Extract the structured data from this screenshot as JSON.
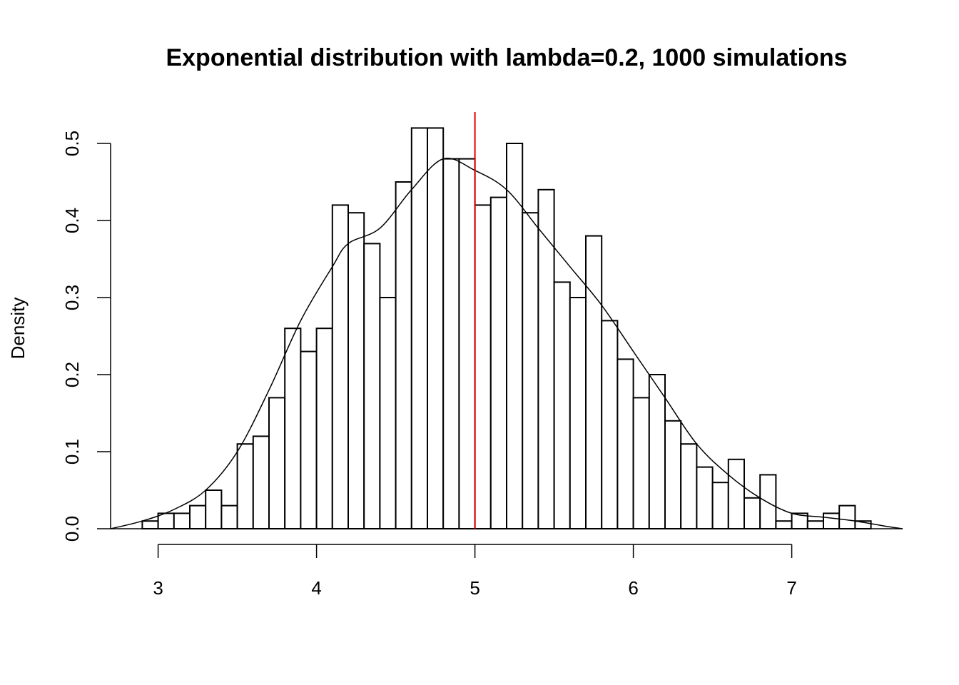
{
  "chart_data": {
    "type": "bar",
    "title": "Exponential distribution with lambda=0.2, 1000 simulations",
    "xlabel": "",
    "ylabel": "Density",
    "xlim": [
      2.7,
      7.7
    ],
    "ylim": [
      0,
      0.5
    ],
    "x_ticks": [
      "3",
      "4",
      "5",
      "6",
      "7"
    ],
    "y_ticks": [
      "0.0",
      "0.1",
      "0.2",
      "0.3",
      "0.4",
      "0.5"
    ],
    "x_tick_values": [
      3,
      4,
      5,
      6,
      7
    ],
    "y_tick_values": [
      0,
      0.1,
      0.2,
      0.3,
      0.4,
      0.5
    ],
    "bin_start": 2.9,
    "bin_width": 0.1,
    "values": [
      0.01,
      0.02,
      0.02,
      0.03,
      0.05,
      0.03,
      0.11,
      0.12,
      0.17,
      0.26,
      0.23,
      0.26,
      0.42,
      0.41,
      0.37,
      0.3,
      0.45,
      0.52,
      0.52,
      0.48,
      0.48,
      0.42,
      0.43,
      0.5,
      0.41,
      0.44,
      0.32,
      0.3,
      0.38,
      0.27,
      0.22,
      0.17,
      0.2,
      0.14,
      0.11,
      0.08,
      0.06,
      0.09,
      0.04,
      0.07,
      0.01,
      0.02,
      0.01,
      0.02,
      0.03,
      0.01
    ],
    "density_curve": {
      "x": [
        2.7,
        2.9,
        3.1,
        3.3,
        3.5,
        3.7,
        3.9,
        4.1,
        4.2,
        4.4,
        4.6,
        4.8,
        5.0,
        5.2,
        5.4,
        5.6,
        5.8,
        6.0,
        6.2,
        6.4,
        6.6,
        6.8,
        7.0,
        7.2,
        7.4,
        7.6,
        7.7
      ],
      "y": [
        0.0,
        0.01,
        0.025,
        0.05,
        0.1,
        0.18,
        0.27,
        0.34,
        0.37,
        0.39,
        0.44,
        0.48,
        0.465,
        0.44,
        0.39,
        0.34,
        0.29,
        0.23,
        0.17,
        0.11,
        0.07,
        0.04,
        0.02,
        0.015,
        0.01,
        0.003,
        0.0
      ]
    },
    "mean_line": {
      "x": 5,
      "color": "#e00000"
    },
    "grid": false,
    "legend": "none"
  }
}
